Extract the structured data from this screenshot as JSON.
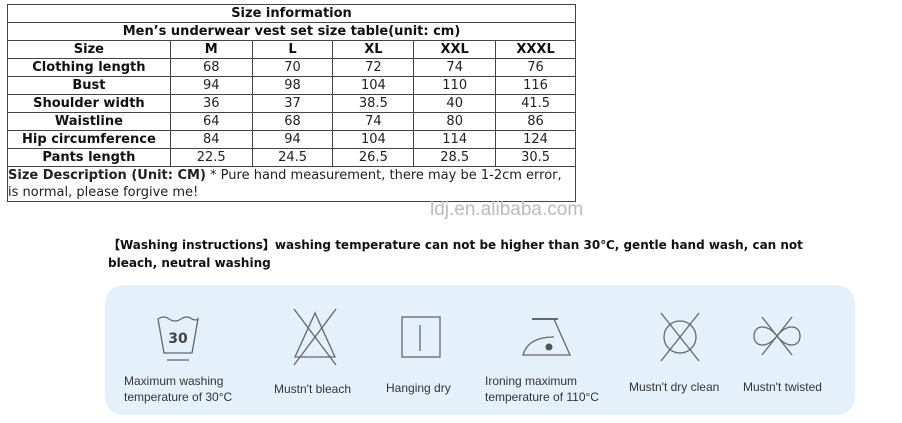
{
  "table": {
    "title": "Size information",
    "subtitle": "Men’s underwear vest set size table(unit: cm)",
    "header": [
      "Size",
      "M",
      "L",
      "XL",
      "XXL",
      "XXXL"
    ],
    "rows": [
      [
        "Clothing length",
        "68",
        "70",
        "72",
        "74",
        "76"
      ],
      [
        "Bust",
        "94",
        "98",
        "104",
        "110",
        "116"
      ],
      [
        "Shoulder width",
        "36",
        "37",
        "38.5",
        "40",
        "41.5"
      ],
      [
        "Waistline",
        "64",
        "68",
        "74",
        "80",
        "86"
      ],
      [
        "Hip circumference",
        "84",
        "94",
        "104",
        "114",
        "124"
      ],
      [
        "Pants length",
        "22.5",
        "24.5",
        "26.5",
        "28.5",
        "30.5"
      ]
    ],
    "desc_bold": "Size Description (Unit: CM)",
    "desc_text": " * Pure hand measurement, there may be 1-2cm error, is normal, please forgive me!"
  },
  "watermark": "ldj.en.alibaba.com",
  "washing": {
    "instructions": "【Washing instructions】washing temperature can not be higher than 30℃, gentle hand wash, can not bleach, neutral washing",
    "tub_number": "30",
    "items": [
      {
        "label": "Maximum washing temperature of 30°C",
        "icon": "wash-30-icon"
      },
      {
        "label": "Mustn't bleach",
        "icon": "no-bleach-icon"
      },
      {
        "label": "Hanging dry",
        "icon": "hang-dry-icon"
      },
      {
        "label": "Ironing maximum temperature of 110°C",
        "icon": "iron-low-icon"
      },
      {
        "label": "Mustn't dry clean",
        "icon": "no-dry-clean-icon"
      },
      {
        "label": "Mustn't twisted",
        "icon": "no-wring-icon"
      }
    ]
  }
}
